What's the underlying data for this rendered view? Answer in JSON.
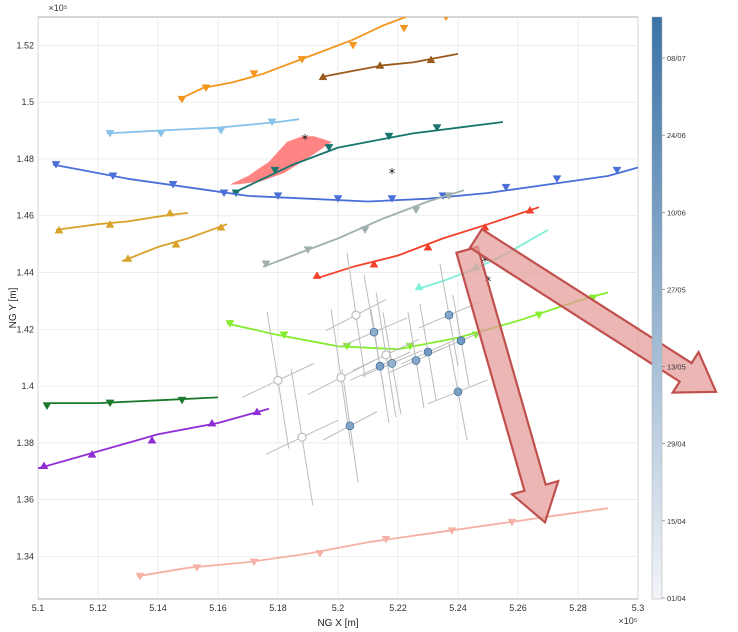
{
  "chart_data": {
    "type": "line",
    "title": "",
    "xlabel": "NG X [m]",
    "ylabel": "NG Y [m]",
    "x_exponent_label": "×10⁵",
    "y_exponent_label": "×10⁵",
    "xlim": [
      5.1,
      5.3
    ],
    "ylim": [
      1.325,
      1.53
    ],
    "x_ticks": [
      "5.1",
      "5.12",
      "5.14",
      "5.16",
      "5.18",
      "5.2",
      "5.22",
      "5.24",
      "5.26",
      "5.28",
      "5.3"
    ],
    "y_ticks": [
      "1.34",
      "1.36",
      "1.38",
      "1.4",
      "1.42",
      "1.44",
      "1.46",
      "1.48",
      "1.5",
      "1.52"
    ],
    "grid": true,
    "colorbar": {
      "position": "right",
      "ticks": [
        "08/07",
        "24/06",
        "10/06",
        "27/05",
        "13/05",
        "29/04",
        "15/04",
        "01/04"
      ],
      "color_low": "#f2f4f8",
      "color_high": "#3a73a8"
    },
    "series": [
      {
        "color": "#f2961e",
        "marker": "v",
        "points": [
          [
            5.147,
            1.501
          ],
          [
            5.155,
            1.505
          ],
          [
            5.165,
            1.507
          ],
          [
            5.175,
            1.51
          ],
          [
            5.185,
            1.514
          ],
          [
            5.195,
            1.518
          ],
          [
            5.205,
            1.522
          ],
          [
            5.215,
            1.527
          ],
          [
            5.225,
            1.531
          ]
        ],
        "markers": [
          [
            5.148,
            1.501
          ],
          [
            5.156,
            1.505
          ],
          [
            5.172,
            1.51
          ],
          [
            5.188,
            1.515
          ],
          [
            5.205,
            1.52
          ],
          [
            5.222,
            1.526
          ],
          [
            5.236,
            1.53
          ]
        ]
      },
      {
        "color": "#9a5a1c",
        "marker": "^",
        "points": [
          [
            5.195,
            1.509
          ],
          [
            5.205,
            1.511
          ],
          [
            5.215,
            1.513
          ],
          [
            5.225,
            1.514
          ],
          [
            5.24,
            1.517
          ]
        ],
        "markers": [
          [
            5.195,
            1.509
          ],
          [
            5.214,
            1.513
          ],
          [
            5.231,
            1.515
          ]
        ]
      },
      {
        "color": "#86c2ea",
        "marker": "v",
        "points": [
          [
            5.123,
            1.489
          ],
          [
            5.14,
            1.49
          ],
          [
            5.16,
            1.491
          ],
          [
            5.18,
            1.493
          ],
          [
            5.187,
            1.494
          ]
        ],
        "markers": [
          [
            5.124,
            1.489
          ],
          [
            5.141,
            1.489
          ],
          [
            5.161,
            1.49
          ],
          [
            5.178,
            1.493
          ]
        ]
      },
      {
        "color": "#17756d",
        "marker": "v",
        "points": [
          [
            5.165,
            1.468
          ],
          [
            5.175,
            1.473
          ],
          [
            5.185,
            1.478
          ],
          [
            5.2,
            1.484
          ],
          [
            5.21,
            1.486
          ],
          [
            5.225,
            1.489
          ],
          [
            5.24,
            1.491
          ],
          [
            5.255,
            1.493
          ]
        ],
        "markers": [
          [
            5.166,
            1.468
          ],
          [
            5.179,
            1.476
          ],
          [
            5.197,
            1.484
          ],
          [
            5.217,
            1.488
          ],
          [
            5.233,
            1.491
          ]
        ]
      },
      {
        "color": "#4a6fd8",
        "marker": "v",
        "points": [
          [
            5.105,
            1.478
          ],
          [
            5.115,
            1.476
          ],
          [
            5.13,
            1.473
          ],
          [
            5.15,
            1.47
          ],
          [
            5.17,
            1.467
          ],
          [
            5.19,
            1.466
          ],
          [
            5.21,
            1.465
          ],
          [
            5.23,
            1.466
          ],
          [
            5.25,
            1.468
          ],
          [
            5.27,
            1.471
          ],
          [
            5.29,
            1.474
          ],
          [
            5.3,
            1.477
          ]
        ],
        "markers": [
          [
            5.106,
            1.478
          ],
          [
            5.125,
            1.474
          ],
          [
            5.145,
            1.471
          ],
          [
            5.162,
            1.468
          ],
          [
            5.18,
            1.467
          ],
          [
            5.2,
            1.466
          ],
          [
            5.218,
            1.466
          ],
          [
            5.235,
            1.467
          ],
          [
            5.256,
            1.47
          ],
          [
            5.273,
            1.473
          ],
          [
            5.293,
            1.476
          ]
        ]
      },
      {
        "color": "#d9a22a",
        "marker": "^",
        "points": [
          [
            5.106,
            1.455
          ],
          [
            5.12,
            1.457
          ],
          [
            5.13,
            1.458
          ],
          [
            5.142,
            1.46
          ],
          [
            5.15,
            1.461
          ]
        ],
        "markers": [
          [
            5.107,
            1.455
          ],
          [
            5.124,
            1.457
          ],
          [
            5.144,
            1.461
          ]
        ]
      },
      {
        "color": "#d9a22a",
        "marker": "^",
        "points": [
          [
            5.128,
            1.444
          ],
          [
            5.14,
            1.449
          ],
          [
            5.15,
            1.452
          ],
          [
            5.163,
            1.457
          ]
        ],
        "markers": [
          [
            5.13,
            1.445
          ],
          [
            5.146,
            1.45
          ],
          [
            5.161,
            1.456
          ]
        ]
      },
      {
        "color": "#9fb0ae",
        "marker": "v",
        "points": [
          [
            5.175,
            1.442
          ],
          [
            5.185,
            1.446
          ],
          [
            5.2,
            1.452
          ],
          [
            5.215,
            1.459
          ],
          [
            5.23,
            1.465
          ],
          [
            5.242,
            1.469
          ]
        ],
        "markers": [
          [
            5.176,
            1.443
          ],
          [
            5.19,
            1.448
          ],
          [
            5.209,
            1.455
          ],
          [
            5.226,
            1.462
          ],
          [
            5.237,
            1.467
          ]
        ]
      },
      {
        "color": "#f2402a",
        "marker": "^",
        "points": [
          [
            5.193,
            1.438
          ],
          [
            5.205,
            1.442
          ],
          [
            5.22,
            1.446
          ],
          [
            5.235,
            1.452
          ],
          [
            5.25,
            1.457
          ],
          [
            5.267,
            1.463
          ]
        ],
        "markers": [
          [
            5.193,
            1.439
          ],
          [
            5.212,
            1.443
          ],
          [
            5.23,
            1.449
          ],
          [
            5.249,
            1.456
          ],
          [
            5.264,
            1.462
          ]
        ]
      },
      {
        "color": "#7ef0d8",
        "marker": "^",
        "points": [
          [
            5.226,
            1.434
          ],
          [
            5.235,
            1.437
          ],
          [
            5.245,
            1.441
          ],
          [
            5.255,
            1.446
          ],
          [
            5.27,
            1.455
          ]
        ],
        "markers": [
          [
            5.227,
            1.435
          ],
          [
            5.246,
            1.442
          ]
        ]
      },
      {
        "color": "#86ec2e",
        "marker": "v",
        "points": [
          [
            5.163,
            1.422
          ],
          [
            5.18,
            1.418
          ],
          [
            5.2,
            1.414
          ],
          [
            5.22,
            1.413
          ],
          [
            5.24,
            1.417
          ],
          [
            5.26,
            1.423
          ],
          [
            5.28,
            1.43
          ],
          [
            5.29,
            1.433
          ]
        ],
        "markers": [
          [
            5.164,
            1.422
          ],
          [
            5.182,
            1.418
          ],
          [
            5.203,
            1.414
          ],
          [
            5.224,
            1.414
          ],
          [
            5.246,
            1.418
          ],
          [
            5.267,
            1.425
          ],
          [
            5.285,
            1.431
          ]
        ]
      },
      {
        "color": "#1a7a2c",
        "marker": "v",
        "points": [
          [
            5.102,
            1.394
          ],
          [
            5.12,
            1.394
          ],
          [
            5.14,
            1.395
          ],
          [
            5.16,
            1.396
          ]
        ],
        "markers": [
          [
            5.103,
            1.393
          ],
          [
            5.124,
            1.394
          ],
          [
            5.148,
            1.395
          ]
        ]
      },
      {
        "color": "#8f2cd6",
        "marker": "^",
        "points": [
          [
            5.1,
            1.371
          ],
          [
            5.12,
            1.377
          ],
          [
            5.14,
            1.383
          ],
          [
            5.16,
            1.387
          ],
          [
            5.177,
            1.392
          ]
        ],
        "markers": [
          [
            5.102,
            1.372
          ],
          [
            5.118,
            1.376
          ],
          [
            5.138,
            1.381
          ],
          [
            5.158,
            1.387
          ],
          [
            5.173,
            1.391
          ]
        ]
      },
      {
        "color": "#f5b1a6",
        "marker": "v",
        "points": [
          [
            5.133,
            1.333
          ],
          [
            5.15,
            1.336
          ],
          [
            5.17,
            1.338
          ],
          [
            5.19,
            1.341
          ],
          [
            5.21,
            1.345
          ],
          [
            5.23,
            1.348
          ],
          [
            5.25,
            1.351
          ],
          [
            5.27,
            1.354
          ],
          [
            5.29,
            1.357
          ]
        ],
        "markers": [
          [
            5.134,
            1.333
          ],
          [
            5.153,
            1.336
          ],
          [
            5.172,
            1.338
          ],
          [
            5.194,
            1.341
          ],
          [
            5.216,
            1.346
          ],
          [
            5.238,
            1.349
          ],
          [
            5.258,
            1.352
          ]
        ]
      }
    ],
    "shaded_region": {
      "color": "#ff7070",
      "points": [
        [
          5.164,
          1.471
        ],
        [
          5.17,
          1.474
        ],
        [
          5.177,
          1.479
        ],
        [
          5.183,
          1.486
        ],
        [
          5.188,
          1.488
        ],
        [
          5.192,
          1.488
        ],
        [
          5.198,
          1.486
        ],
        [
          5.191,
          1.481
        ],
        [
          5.182,
          1.475
        ],
        [
          5.174,
          1.472
        ],
        [
          5.166,
          1.471
        ]
      ]
    },
    "star_markers": [
      [
        5.189,
        1.487
      ],
      [
        5.218,
        1.475
      ],
      [
        5.249,
        1.444
      ],
      [
        5.25,
        1.437
      ]
    ],
    "solid_points": [
      {
        "x": 5.212,
        "y": 1.419,
        "ex": 0.011,
        "ey": 0.02,
        "level": 0.55
      },
      {
        "x": 5.214,
        "y": 1.407,
        "ex": 0.01,
        "ey": 0.02,
        "level": 0.65
      },
      {
        "x": 5.218,
        "y": 1.408,
        "ex": 0.01,
        "ey": 0.018,
        "level": 0.5
      },
      {
        "x": 5.226,
        "y": 1.409,
        "ex": 0.009,
        "ey": 0.017,
        "level": 0.6
      },
      {
        "x": 5.23,
        "y": 1.412,
        "ex": 0.009,
        "ey": 0.017,
        "level": 0.7
      },
      {
        "x": 5.237,
        "y": 1.425,
        "ex": 0.01,
        "ey": 0.018,
        "level": 0.6
      },
      {
        "x": 5.241,
        "y": 1.416,
        "ex": 0.009,
        "ey": 0.016,
        "level": 0.7
      },
      {
        "x": 5.24,
        "y": 1.398,
        "ex": 0.01,
        "ey": 0.017,
        "level": 0.65
      },
      {
        "x": 5.204,
        "y": 1.386,
        "ex": 0.009,
        "ey": 0.02,
        "level": 0.6
      }
    ],
    "open_points": [
      {
        "x": 5.18,
        "y": 1.402,
        "ex": 0.012,
        "ey": 0.024
      },
      {
        "x": 5.188,
        "y": 1.382,
        "ex": 0.012,
        "ey": 0.024
      },
      {
        "x": 5.201,
        "y": 1.403,
        "ex": 0.011,
        "ey": 0.024
      },
      {
        "x": 5.216,
        "y": 1.411,
        "ex": 0.011,
        "ey": 0.022
      },
      {
        "x": 5.206,
        "y": 1.425,
        "ex": 0.01,
        "ey": 0.022
      }
    ],
    "arrows": [
      {
        "from": [
          5.243,
          1.448
        ],
        "to": [
          5.269,
          1.352
        ],
        "color": "#c0504d",
        "fill": "#e59a98"
      },
      {
        "from": [
          5.246,
          1.452
        ],
        "to": [
          5.326,
          1.398
        ],
        "color": "#c0504d",
        "fill": "#e59a98"
      }
    ]
  }
}
